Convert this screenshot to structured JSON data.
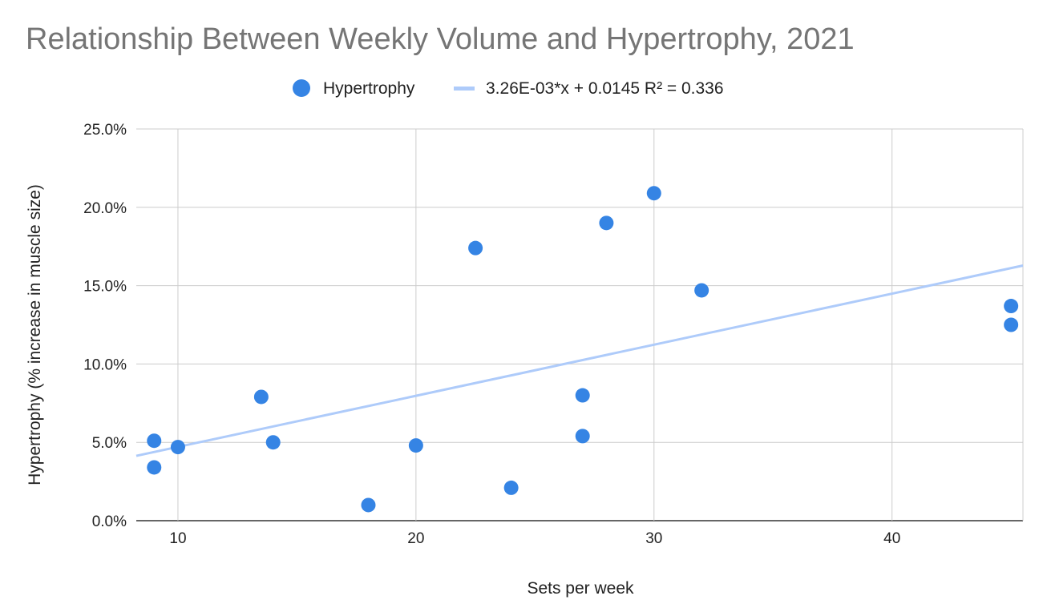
{
  "chart_data": {
    "type": "scatter",
    "title": "Relationship Between Weekly Volume and Hypertrophy, 2021",
    "xlabel": "Sets per week",
    "ylabel": "Hypertrophy (% increase in muscle size)",
    "xlim": [
      8.25,
      45.5
    ],
    "ylim": [
      0,
      0.25
    ],
    "x_ticks": [
      10,
      20,
      30,
      40
    ],
    "x_tick_labels": [
      "10",
      "20",
      "30",
      "40"
    ],
    "y_ticks": [
      0,
      0.05,
      0.1,
      0.15,
      0.2,
      0.25
    ],
    "y_tick_labels": [
      "0.0%",
      "5.0%",
      "10.0%",
      "15.0%",
      "20.0%",
      "25.0%"
    ],
    "grid": true,
    "legend_position": "top",
    "series": [
      {
        "name": "Hypertrophy",
        "type": "scatter",
        "color": "#3584e4",
        "points": [
          {
            "x": 9,
            "y": 0.051
          },
          {
            "x": 9,
            "y": 0.034
          },
          {
            "x": 10,
            "y": 0.047
          },
          {
            "x": 13.5,
            "y": 0.079
          },
          {
            "x": 14,
            "y": 0.05
          },
          {
            "x": 18,
            "y": 0.01
          },
          {
            "x": 20,
            "y": 0.048
          },
          {
            "x": 22.5,
            "y": 0.174
          },
          {
            "x": 24,
            "y": 0.021
          },
          {
            "x": 27,
            "y": 0.08
          },
          {
            "x": 27,
            "y": 0.054
          },
          {
            "x": 28,
            "y": 0.19
          },
          {
            "x": 30,
            "y": 0.209
          },
          {
            "x": 32,
            "y": 0.147
          },
          {
            "x": 45,
            "y": 0.137
          },
          {
            "x": 45,
            "y": 0.125
          }
        ]
      }
    ],
    "trendline": {
      "name": "3.26E-03*x + 0.0145 R² = 0.336",
      "slope": 0.00326,
      "intercept": 0.0145,
      "r_squared": 0.336,
      "color": "#aecbfa"
    }
  }
}
